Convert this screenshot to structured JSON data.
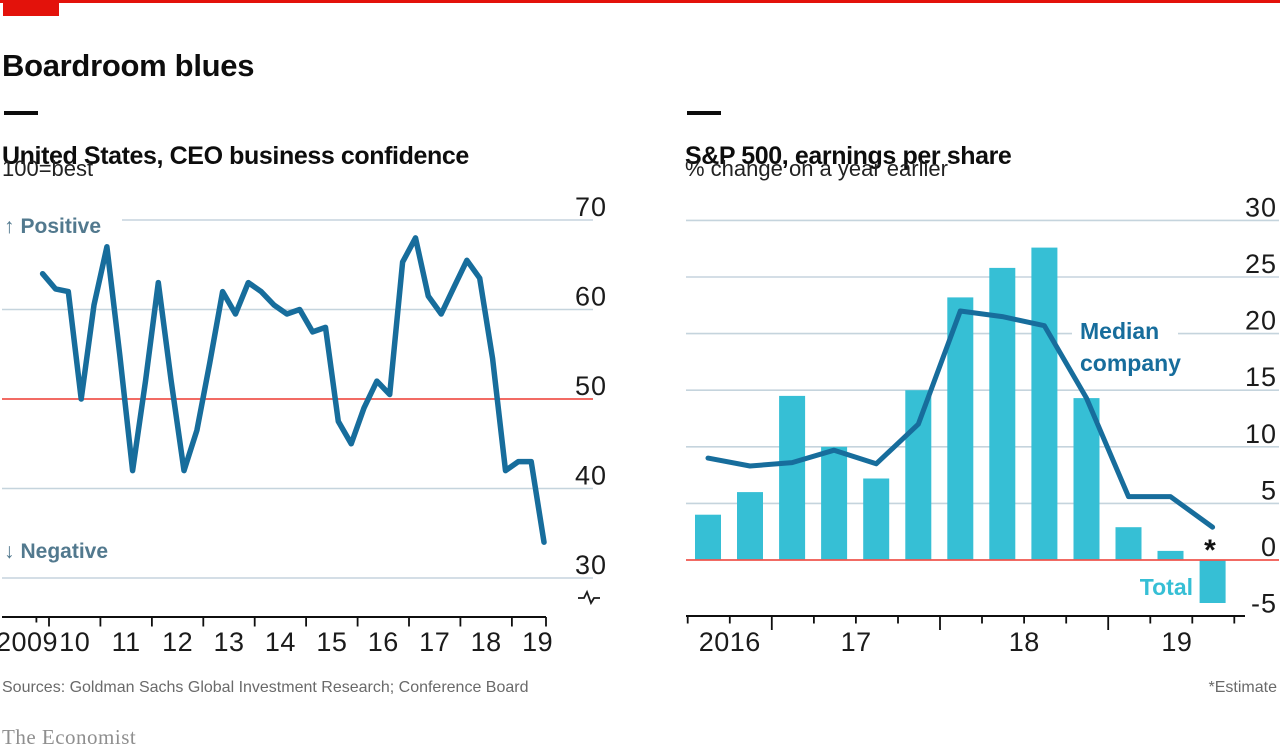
{
  "header": {
    "title": "Boardroom blues"
  },
  "panels": {
    "left": {
      "subtitle": "United States, CEO business confidence",
      "unit": "100=best",
      "positive_label": "Positive",
      "negative_label": "Negative"
    },
    "right": {
      "subtitle": "S&P 500, earnings per share",
      "unit": "% change on a year earlier",
      "line_label_line1": "Median",
      "line_label_line2": "company",
      "bar_label": "Total",
      "estimate_marker": "*"
    }
  },
  "icons": {
    "positive_arrow": "↑",
    "negative_arrow": "↓",
    "axis_break": "sine-squiggle"
  },
  "footer": {
    "sources": "Sources: Goldman Sachs Global Investment Research; Conference Board",
    "estimate_note": "*Estimate",
    "brand": "The Economist"
  },
  "colors": {
    "brand_red": "#E3120B",
    "bar_cyan": "#36BFD5",
    "line_blue": "#176D9C",
    "threshold_red": "#F0564E",
    "gridline": "#C5D4DD",
    "annotation_slate": "#52798E",
    "axis_black": "#0f0f0f",
    "tick_text": "#1b1b1b",
    "muted_text": "#6a6a6a",
    "brand_text": "#8F8F8F"
  },
  "chart_data": [
    {
      "id": "ceo-confidence",
      "type": "line",
      "title": "United States, CEO business confidence",
      "subtitle": "100=best",
      "frequency": "quarterly",
      "start": "2009 Q4",
      "end": "2019 Q3",
      "values": [
        64,
        62.3,
        62,
        50,
        60.5,
        67,
        55,
        42,
        52,
        63,
        52,
        42,
        46.5,
        54,
        62,
        59.5,
        63,
        62,
        60.5,
        59.5,
        60,
        57.5,
        58,
        47.5,
        45,
        49,
        52,
        50.5,
        65.3,
        68,
        61.5,
        59.5,
        62.5,
        65.5,
        63.5,
        54.5,
        42,
        43,
        43,
        34
      ],
      "ylim": [
        30,
        70
      ],
      "yticks": [
        70,
        60,
        50,
        40,
        30
      ],
      "threshold_line": 50,
      "xticklabels": [
        "2009",
        "10",
        "11",
        "12",
        "13",
        "14",
        "15",
        "16",
        "17",
        "18",
        "19"
      ],
      "annotations": [
        "Positive",
        "Negative"
      ],
      "axis_break": true,
      "grid": "on",
      "legend_position": "none"
    },
    {
      "id": "sp500-eps",
      "type": "bar",
      "title": "S&P 500, earnings per share",
      "subtitle": "% change on a year earlier",
      "categories": [
        "2016 Q3",
        "2016 Q4",
        "2017 Q1",
        "2017 Q2",
        "2017 Q3",
        "2017 Q4",
        "2018 Q1",
        "2018 Q2",
        "2018 Q3",
        "2018 Q4",
        "2019 Q1",
        "2019 Q2",
        "2019 Q3*"
      ],
      "series": [
        {
          "name": "Total",
          "type": "bar",
          "values": [
            4,
            6,
            14.5,
            10,
            7.2,
            15,
            23.2,
            25.8,
            27.6,
            14.3,
            2.9,
            0.8,
            -3.8
          ]
        },
        {
          "name": "Median company",
          "type": "line",
          "values": [
            9,
            8.3,
            8.6,
            9.7,
            8.5,
            12,
            22,
            21.5,
            20.7,
            14.3,
            5.6,
            5.6,
            2.9
          ]
        }
      ],
      "ylim": [
        -5,
        30
      ],
      "yticks": [
        30,
        25,
        20,
        15,
        10,
        5,
        0,
        -5
      ],
      "zero_line": 0,
      "xticklabels": [
        "2016",
        "17",
        "18",
        "19"
      ],
      "last_value_is_estimate": true,
      "grid": "on",
      "legend_position": "inline-annotations"
    }
  ]
}
